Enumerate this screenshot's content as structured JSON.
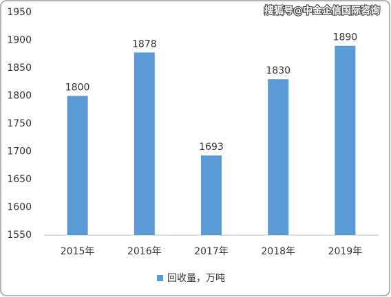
{
  "chart_data": {
    "type": "bar",
    "categories": [
      "2015年",
      "2016年",
      "2017年",
      "2018年",
      "2019年"
    ],
    "values": [
      1800,
      1878,
      1693,
      1830,
      1890
    ],
    "color": "#5b9bd5",
    "series_name": "回收量，万吨",
    "ylim": [
      1550,
      1950
    ],
    "yticks": [
      1550,
      1600,
      1650,
      1700,
      1750,
      1800,
      1850,
      1900,
      1950
    ],
    "grid": false,
    "legend": "bottom",
    "watermark": "搜狐号@中金企信国际咨询"
  }
}
